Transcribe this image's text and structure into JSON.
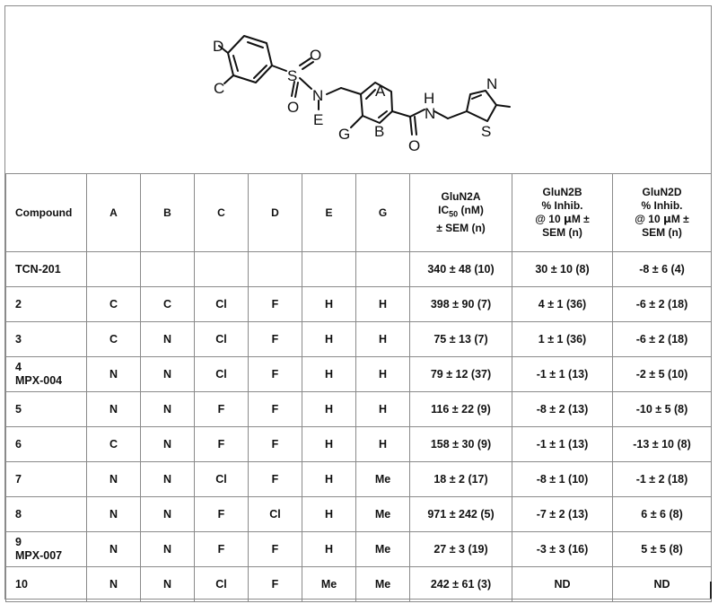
{
  "structure": {
    "atoms": {
      "D": "D",
      "C": "C",
      "S": "S",
      "O1": "O",
      "O2": "O",
      "N1": "N",
      "E": "E",
      "A": "A",
      "B": "B",
      "G": "G",
      "O3": "O",
      "H": "H",
      "N2": "N",
      "N3": "N",
      "S2": "S"
    }
  },
  "table": {
    "headers": {
      "compound": "Compound",
      "a": "A",
      "b": "B",
      "c": "C",
      "d": "D",
      "e": "E",
      "g": "G",
      "glun2a_l1": "GluN2A",
      "glun2a_ic": "IC",
      "glun2a_sub": "50",
      "glun2a_unit": " (nM)",
      "glun2a_l3": "± SEM (n)",
      "glun2b_l1": "GluN2B",
      "glun2b_l2": "% Inhib.",
      "glun2b_l3_a": "@ 10 ",
      "glun2b_mu": "μ",
      "glun2b_l3_b": "M  ±",
      "glun2b_l4": "SEM (n)",
      "glun2d_l1": "GluN2D",
      "glun2d_l2": "% Inhib.",
      "glun2d_l3_a": "@ 10 ",
      "glun2d_mu": "μ",
      "glun2d_l3_b": "M ±",
      "glun2d_l4": "SEM (n)"
    },
    "rows": [
      {
        "compound": "TCN-201",
        "compound2": "",
        "a": "",
        "b": "",
        "c": "",
        "d": "",
        "e": "",
        "g": "",
        "glun2a": "340 ± 48  (10)",
        "glun2b": "30 ± 10  (8)",
        "glun2d": "-8 ± 6  (4)"
      },
      {
        "compound": "2",
        "compound2": "",
        "a": "C",
        "b": "C",
        "c": "Cl",
        "d": "F",
        "e": "H",
        "g": "H",
        "glun2a": "398 ± 90  (7)",
        "glun2b": "4 ± 1 (36)",
        "glun2d": "-6 ± 2 (18)"
      },
      {
        "compound": "3",
        "compound2": "",
        "a": "C",
        "b": "N",
        "c": "Cl",
        "d": "F",
        "e": "H",
        "g": "H",
        "glun2a": "75 ± 13  (7)",
        "glun2b": "1 ± 1 (36)",
        "glun2d": "-6 ± 2 (18)"
      },
      {
        "compound": "4",
        "compound2": "MPX-004",
        "a": "N",
        "b": "N",
        "c": "Cl",
        "d": "F",
        "e": "H",
        "g": "H",
        "glun2a": "79 ± 12  (37)",
        "glun2b": "-1 ± 1 (13)",
        "glun2d": "-2 ± 5 (10)"
      },
      {
        "compound": "5",
        "compound2": "",
        "a": "N",
        "b": "N",
        "c": "F",
        "d": "F",
        "e": "H",
        "g": "H",
        "glun2a": "116 ± 22  (9)",
        "glun2b": "-8 ± 2 (13)",
        "glun2d": "-10 ± 5 (8)"
      },
      {
        "compound": "6",
        "compound2": "",
        "a": "C",
        "b": "N",
        "c": "F",
        "d": "F",
        "e": "H",
        "g": "H",
        "glun2a": "158 ± 30  (9)",
        "glun2b": "-1 ± 1 (13)",
        "glun2d": "-13 ± 10 (8)"
      },
      {
        "compound": "7",
        "compound2": "",
        "a": "N",
        "b": "N",
        "c": "Cl",
        "d": "F",
        "e": "H",
        "g": "Me",
        "glun2a": "18 ± 2  (17)",
        "glun2b": "-8 ± 1 (10)",
        "glun2d": "-1 ± 2 (18)"
      },
      {
        "compound": "8",
        "compound2": "",
        "a": "N",
        "b": "N",
        "c": "F",
        "d": "Cl",
        "e": "H",
        "g": "Me",
        "glun2a": "971 ± 242  (5)",
        "glun2b": "-7 ± 2 (13)",
        "glun2d": "6 ± 6 (8)"
      },
      {
        "compound": "9",
        "compound2": "MPX-007",
        "a": "N",
        "b": "N",
        "c": "F",
        "d": "F",
        "e": "H",
        "g": "Me",
        "glun2a": "27 ± 3  (19)",
        "glun2b": "-3 ± 3 (16)",
        "glun2d": "5 ± 5 (8)"
      },
      {
        "compound": "10",
        "compound2": "",
        "a": "N",
        "b": "N",
        "c": "Cl",
        "d": "F",
        "e": "Me",
        "g": "Me",
        "glun2a": "242 ± 61  (3)",
        "glun2b": "ND",
        "glun2d": "ND"
      }
    ]
  }
}
